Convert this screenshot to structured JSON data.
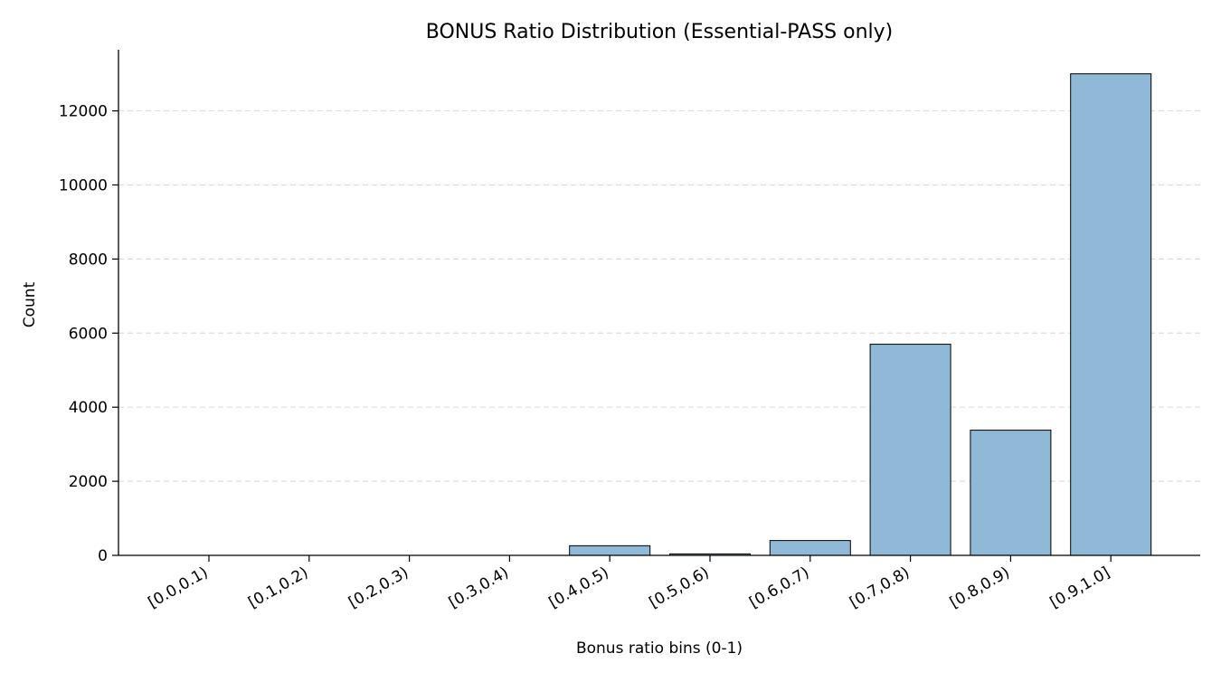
{
  "chart_data": {
    "type": "bar",
    "title": "BONUS Ratio Distribution (Essential-PASS only)",
    "xlabel": "Bonus ratio bins (0-1)",
    "ylabel": "Count",
    "categories": [
      "[0.0,0.1)",
      "[0.1,0.2)",
      "[0.2,0.3)",
      "[0.3,0.4)",
      "[0.4,0.5)",
      "[0.5,0.6)",
      "[0.6,0.7)",
      "[0.7,0.8)",
      "[0.8,0.9)",
      "[0.9,1.0]"
    ],
    "values": [
      0,
      0,
      0,
      0,
      260,
      40,
      400,
      5700,
      3380,
      13000
    ],
    "ylim": [
      0,
      13650
    ],
    "yticks": [
      0,
      2000,
      4000,
      6000,
      8000,
      10000,
      12000
    ],
    "grid": "y-dashed",
    "bar_color": "#8fb9d7",
    "bar_edge_color": "#000000",
    "grid_color": "#dddddd"
  }
}
